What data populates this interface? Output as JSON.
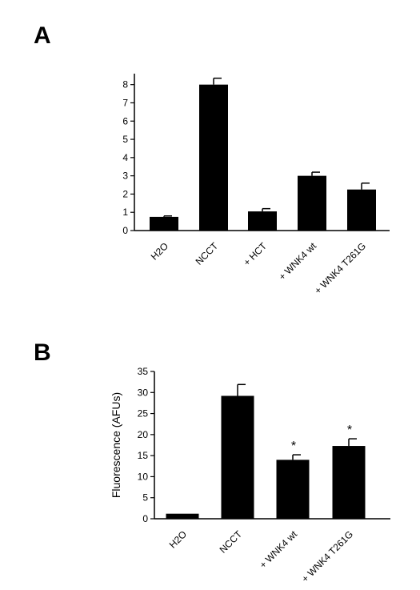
{
  "chart_data": [
    {
      "panel": "A",
      "type": "bar",
      "categories": [
        "H2O",
        "NCCT",
        "+ HCT",
        "+ WNK4 wt",
        "+ WNK4 T261G"
      ],
      "values": [
        0.75,
        8.0,
        1.05,
        3.0,
        2.25
      ],
      "errors": [
        0.05,
        0.35,
        0.15,
        0.2,
        0.35
      ],
      "annotations": [
        "",
        "",
        "",
        "",
        ""
      ],
      "ylabel": "",
      "ylim": [
        0,
        8.6
      ],
      "yticks": [
        0,
        1,
        2,
        3,
        4,
        5,
        6,
        7,
        8
      ],
      "bar_color": "#000000"
    },
    {
      "panel": "B",
      "type": "bar",
      "categories": [
        "H2O",
        "NCCT",
        "+ WNK4 wt",
        "+ WNK4 T261G"
      ],
      "values": [
        1.2,
        29.2,
        14.0,
        17.3
      ],
      "errors": [
        0.0,
        2.7,
        1.2,
        1.7
      ],
      "annotations": [
        "",
        "",
        "*",
        "*"
      ],
      "ylabel": "Fluorescence (AFUs)",
      "ylim": [
        0,
        35
      ],
      "yticks": [
        0,
        5,
        10,
        15,
        20,
        25,
        30,
        35
      ],
      "bar_color": "#000000"
    }
  ]
}
